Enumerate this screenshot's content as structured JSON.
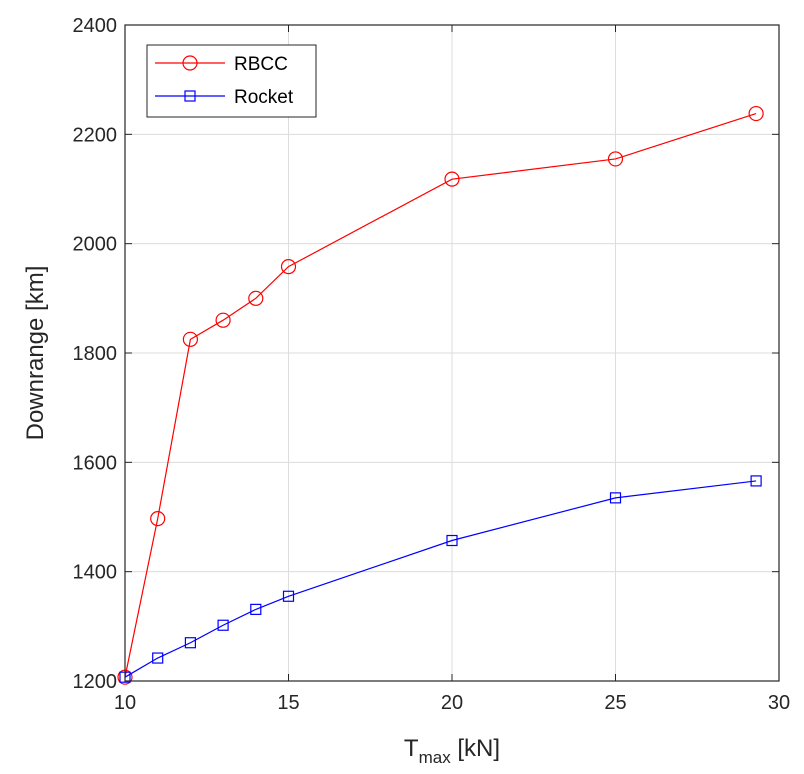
{
  "chart_data": {
    "type": "line",
    "xlabel": "T",
    "xlabel_sub": "max",
    "xlabel_unit": " [kN]",
    "ylabel": "Downrange [km]",
    "xlim": [
      10,
      30
    ],
    "ylim": [
      1200,
      2400
    ],
    "xticks": [
      10,
      15,
      20,
      25,
      30
    ],
    "yticks": [
      1200,
      1400,
      1600,
      1800,
      2000,
      2200,
      2400
    ],
    "grid": true,
    "legend_position": "top-left",
    "series": [
      {
        "name": "RBCC",
        "color": "#ff0000",
        "marker": "circle",
        "x": [
          10,
          11,
          12,
          13,
          14,
          15,
          20,
          25,
          29.3
        ],
        "y": [
          1207,
          1497,
          1825,
          1860,
          1900,
          1958,
          2118,
          2155,
          2238
        ]
      },
      {
        "name": "Rocket",
        "color": "#0000ff",
        "marker": "square",
        "x": [
          10,
          11,
          12,
          13,
          14,
          15,
          20,
          25,
          29.3
        ],
        "y": [
          1207,
          1242,
          1270,
          1302,
          1331,
          1355,
          1457,
          1535,
          1566
        ]
      }
    ]
  }
}
